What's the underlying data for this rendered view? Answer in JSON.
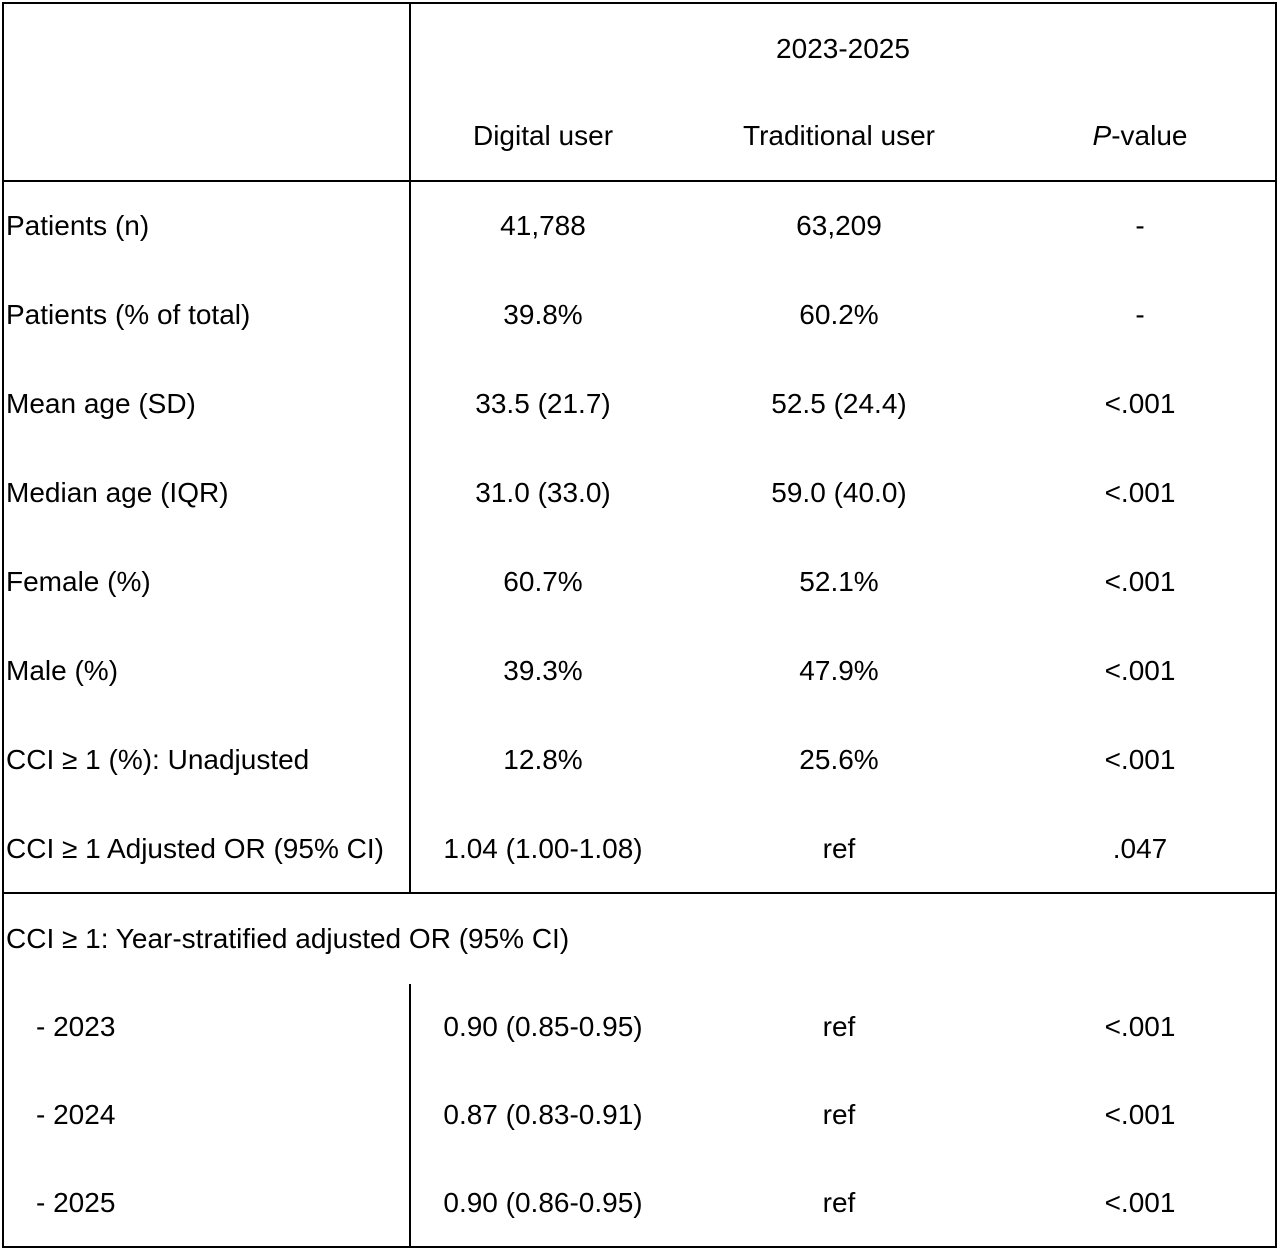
{
  "header": {
    "period": "2023-2025",
    "col_digital": "Digital user",
    "col_traditional": "Traditional user",
    "col_p_prefix": "P",
    "col_p_suffix": "-value"
  },
  "rows": [
    {
      "label": "Patients (n)",
      "digital": "41,788",
      "traditional": "63,209",
      "p": "-"
    },
    {
      "label": "Patients (% of total)",
      "digital": "39.8%",
      "traditional": "60.2%",
      "p": "-"
    },
    {
      "label": "Mean age (SD)",
      "digital": "33.5 (21.7)",
      "traditional": "52.5 (24.4)",
      "p": "<.001"
    },
    {
      "label": "Median age (IQR)",
      "digital": "31.0 (33.0)",
      "traditional": "59.0 (40.0)",
      "p": "<.001"
    },
    {
      "label": "Female (%)",
      "digital": "60.7%",
      "traditional": "52.1%",
      "p": "<.001"
    },
    {
      "label": "Male (%)",
      "digital": "39.3%",
      "traditional": "47.9%",
      "p": "<.001"
    },
    {
      "label": "CCI ≥ 1 (%): Unadjusted",
      "digital": "12.8%",
      "traditional": "25.6%",
      "p": "<.001"
    },
    {
      "label": "CCI ≥ 1 Adjusted OR (95% CI)",
      "digital": "1.04 (1.00-1.08)",
      "traditional": "ref",
      "p": ".047"
    }
  ],
  "stratified": {
    "title": "CCI ≥ 1: Year-stratified adjusted OR (95% CI)",
    "rows": [
      {
        "label": "- 2023",
        "digital": "0.90 (0.85-0.95)",
        "traditional": "ref",
        "p": "<.001"
      },
      {
        "label": "- 2024",
        "digital": "0.87 (0.83-0.91)",
        "traditional": "ref",
        "p": "<.001"
      },
      {
        "label": "- 2025",
        "digital": "0.90 (0.86-0.95)",
        "traditional": "ref",
        "p": "<.001"
      }
    ]
  }
}
